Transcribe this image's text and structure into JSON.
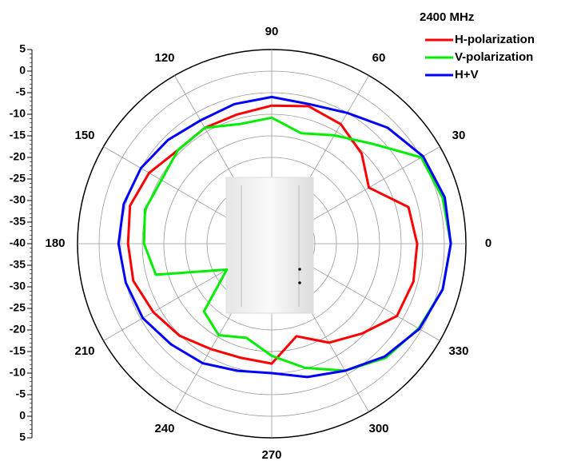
{
  "chart_data": {
    "type": "polar",
    "title": "2400 MHz",
    "theta": [
      0,
      15,
      30,
      45,
      60,
      75,
      90,
      105,
      120,
      135,
      150,
      165,
      180,
      195,
      210,
      225,
      240,
      255,
      270,
      285,
      300,
      315,
      330,
      345
    ],
    "series": [
      {
        "name": "H-polarization",
        "color": "#ff0000",
        "values": [
          -6.3,
          -7.2,
          -14,
          -10.5,
          -8,
          -7,
          -8,
          -9,
          -9,
          -9.3,
          -7.2,
          -6,
          -6.7,
          -6.8,
          -8.3,
          -9.8,
          -11.8,
          -12.6,
          -12.2,
          -17.8,
          -13.5,
          -10.5,
          -6.5,
          -6
        ]
      },
      {
        "name": "V-polarization",
        "color": "#00ee00",
        "values": [
          1.5,
          1,
          0,
          -7.2,
          -11,
          -13.5,
          -10.8,
          -11.3,
          -9,
          -9.3,
          -10.5,
          -9.6,
          -10.4,
          -12.2,
          -28,
          -17.8,
          -15.5,
          -17.4,
          -14,
          -10.2,
          -6,
          -2.6,
          -0.7,
          1
        ]
      },
      {
        "name": "H+V",
        "color": "#0000ff",
        "values": [
          1.5,
          1.5,
          0.5,
          -2,
          -5,
          -6.5,
          -6,
          -6.5,
          -7,
          -6,
          -5,
          -4.5,
          -4.5,
          -5,
          -5.5,
          -7,
          -8,
          -9.5,
          -10,
          -8,
          -6,
          -3,
          -0.5,
          1
        ]
      }
    ],
    "rlim": [
      -40,
      5
    ],
    "rticks": [
      -40,
      -35,
      -30,
      -25,
      -20,
      -15,
      -10,
      -5,
      0,
      5
    ],
    "thetaticks": [
      0,
      30,
      60,
      90,
      120,
      150,
      180,
      210,
      240,
      270,
      300,
      330
    ],
    "grid": true
  }
}
